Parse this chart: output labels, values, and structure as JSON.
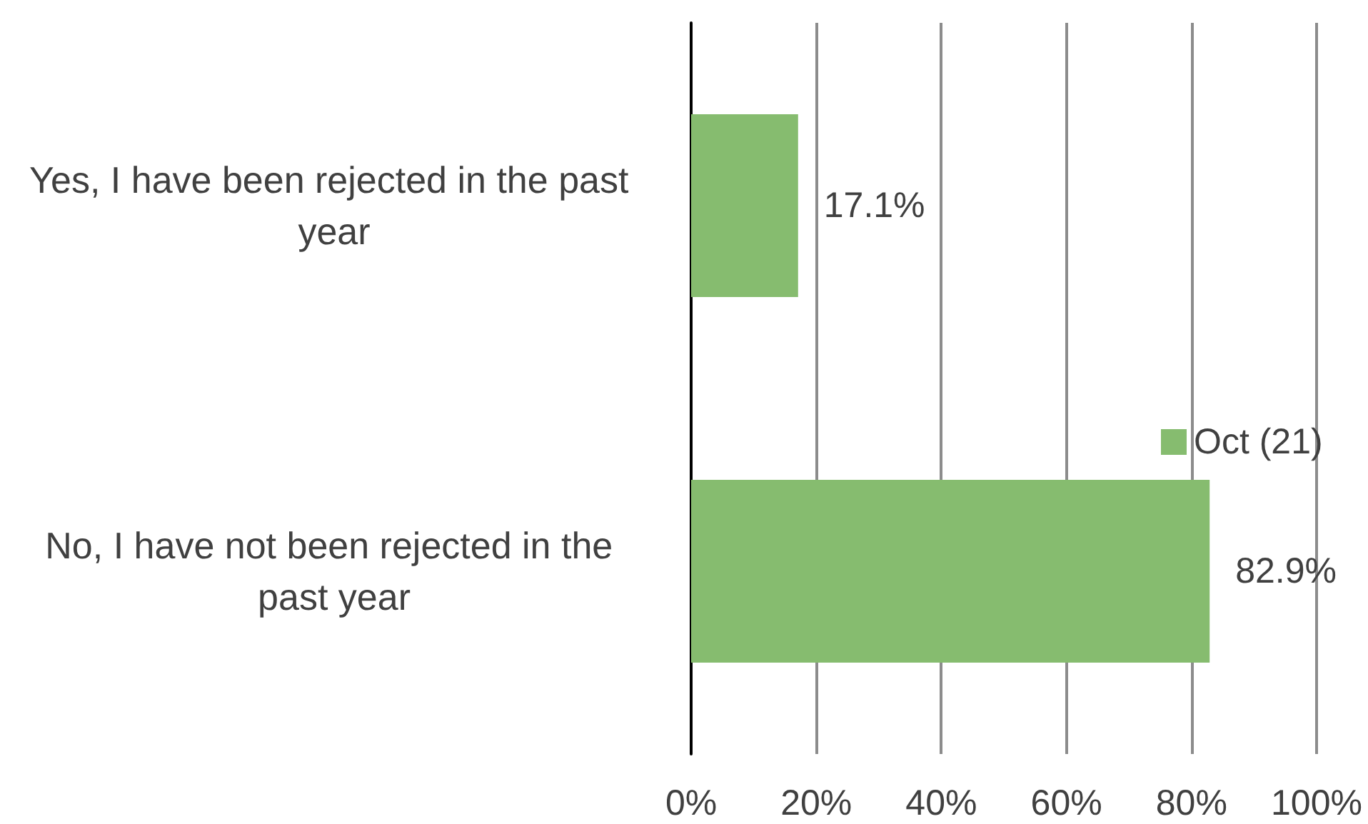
{
  "chart_data": {
    "type": "bar",
    "orientation": "horizontal",
    "categories": [
      "Yes, I have been rejected in the past year",
      "No, I have not been rejected in the past year"
    ],
    "series": [
      {
        "name": "Oct (21)",
        "color": "#86bc6f",
        "values": [
          17.1,
          82.9
        ],
        "value_labels": [
          "17.1%",
          "82.9%"
        ]
      }
    ],
    "xlim": [
      0,
      100
    ],
    "xticks": [
      {
        "value": 0,
        "label": "0%"
      },
      {
        "value": 20,
        "label": "20%"
      },
      {
        "value": 40,
        "label": "40%"
      },
      {
        "value": 60,
        "label": "60%"
      },
      {
        "value": 80,
        "label": "80%"
      },
      {
        "value": 100,
        "label": "100%"
      }
    ],
    "grid": "x",
    "legend": "right"
  }
}
